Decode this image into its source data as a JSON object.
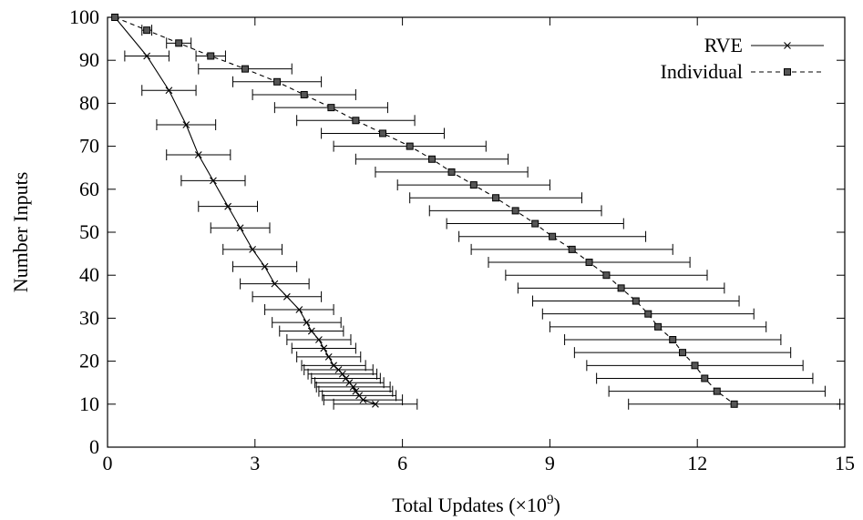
{
  "chart_data": {
    "type": "line",
    "xlabel": "Total Updates (×10",
    "xlabel_sup": "9",
    "xlabel_end": ")",
    "ylabel": "Number Inputs",
    "xlim": [
      0,
      15
    ],
    "ylim": [
      0,
      100
    ],
    "x_ticks": [
      "0",
      "3",
      "6",
      "9",
      "12",
      "15"
    ],
    "y_ticks": [
      "0",
      "10",
      "20",
      "30",
      "40",
      "50",
      "60",
      "70",
      "80",
      "90",
      "100"
    ],
    "legend_position": "top-right",
    "grid": false,
    "series": [
      {
        "name": "RVE",
        "line_style": "solid",
        "marker": "cross",
        "points": [
          {
            "y": 100,
            "x": 0.15,
            "err": 0.0
          },
          {
            "y": 91,
            "x": 0.8,
            "err": 0.45
          },
          {
            "y": 83,
            "x": 1.25,
            "err": 0.55
          },
          {
            "y": 75,
            "x": 1.6,
            "err": 0.6
          },
          {
            "y": 68,
            "x": 1.85,
            "err": 0.65
          },
          {
            "y": 62,
            "x": 2.15,
            "err": 0.65
          },
          {
            "y": 56,
            "x": 2.45,
            "err": 0.6
          },
          {
            "y": 51,
            "x": 2.7,
            "err": 0.6
          },
          {
            "y": 46,
            "x": 2.95,
            "err": 0.6
          },
          {
            "y": 42,
            "x": 3.2,
            "err": 0.65
          },
          {
            "y": 38,
            "x": 3.4,
            "err": 0.7
          },
          {
            "y": 35,
            "x": 3.65,
            "err": 0.7
          },
          {
            "y": 32,
            "x": 3.9,
            "err": 0.7
          },
          {
            "y": 29,
            "x": 4.05,
            "err": 0.7
          },
          {
            "y": 27,
            "x": 4.15,
            "err": 0.65
          },
          {
            "y": 25,
            "x": 4.3,
            "err": 0.65
          },
          {
            "y": 23,
            "x": 4.4,
            "err": 0.65
          },
          {
            "y": 21,
            "x": 4.5,
            "err": 0.65
          },
          {
            "y": 19,
            "x": 4.6,
            "err": 0.65
          },
          {
            "y": 18,
            "x": 4.7,
            "err": 0.7
          },
          {
            "y": 17,
            "x": 4.78,
            "err": 0.7
          },
          {
            "y": 16,
            "x": 4.85,
            "err": 0.7
          },
          {
            "y": 15,
            "x": 4.92,
            "err": 0.7
          },
          {
            "y": 14,
            "x": 5.0,
            "err": 0.75
          },
          {
            "y": 13,
            "x": 5.05,
            "err": 0.75
          },
          {
            "y": 12,
            "x": 5.12,
            "err": 0.75
          },
          {
            "y": 11,
            "x": 5.2,
            "err": 0.8
          },
          {
            "y": 10,
            "x": 5.45,
            "err": 0.85
          }
        ]
      },
      {
        "name": "Individual",
        "line_style": "dashed",
        "marker": "square",
        "points": [
          {
            "y": 100,
            "x": 0.15,
            "err": 0.0
          },
          {
            "y": 97,
            "x": 0.8,
            "err": 0.1
          },
          {
            "y": 94,
            "x": 1.45,
            "err": 0.25
          },
          {
            "y": 91,
            "x": 2.1,
            "err": 0.3
          },
          {
            "y": 88,
            "x": 2.8,
            "err": 0.95
          },
          {
            "y": 85,
            "x": 3.45,
            "err": 0.9
          },
          {
            "y": 82,
            "x": 4.0,
            "err": 1.05
          },
          {
            "y": 79,
            "x": 4.55,
            "err": 1.15
          },
          {
            "y": 76,
            "x": 5.05,
            "err": 1.2
          },
          {
            "y": 73,
            "x": 5.6,
            "err": 1.25
          },
          {
            "y": 70,
            "x": 6.15,
            "err": 1.55
          },
          {
            "y": 67,
            "x": 6.6,
            "err": 1.55
          },
          {
            "y": 64,
            "x": 7.0,
            "err": 1.55
          },
          {
            "y": 61,
            "x": 7.45,
            "err": 1.55
          },
          {
            "y": 58,
            "x": 7.9,
            "err": 1.75
          },
          {
            "y": 55,
            "x": 8.3,
            "err": 1.75
          },
          {
            "y": 52,
            "x": 8.7,
            "err": 1.8
          },
          {
            "y": 49,
            "x": 9.05,
            "err": 1.9
          },
          {
            "y": 46,
            "x": 9.45,
            "err": 2.05
          },
          {
            "y": 43,
            "x": 9.8,
            "err": 2.05
          },
          {
            "y": 40,
            "x": 10.15,
            "err": 2.05
          },
          {
            "y": 37,
            "x": 10.45,
            "err": 2.1
          },
          {
            "y": 34,
            "x": 10.75,
            "err": 2.1
          },
          {
            "y": 31,
            "x": 11.0,
            "err": 2.15
          },
          {
            "y": 28,
            "x": 11.2,
            "err": 2.2
          },
          {
            "y": 25,
            "x": 11.5,
            "err": 2.2
          },
          {
            "y": 22,
            "x": 11.7,
            "err": 2.2
          },
          {
            "y": 19,
            "x": 11.95,
            "err": 2.2
          },
          {
            "y": 16,
            "x": 12.15,
            "err": 2.2
          },
          {
            "y": 13,
            "x": 12.4,
            "err": 2.2
          },
          {
            "y": 10,
            "x": 12.75,
            "err": 2.15
          }
        ]
      }
    ]
  }
}
